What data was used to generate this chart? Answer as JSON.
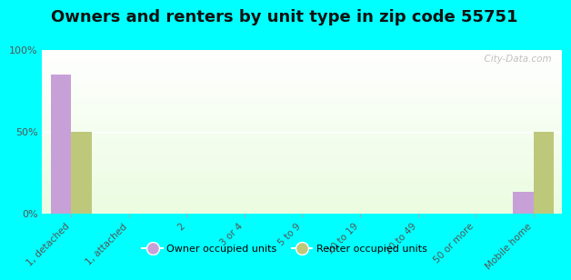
{
  "title": "Owners and renters by unit type in zip code 55751",
  "categories": [
    "1, detached",
    "1, attached",
    "2",
    "3 or 4",
    "5 to 9",
    "10 to 19",
    "20 to 49",
    "50 or more",
    "Mobile home"
  ],
  "owner_values": [
    85,
    0,
    0,
    0,
    0,
    0,
    0,
    0,
    13
  ],
  "renter_values": [
    50,
    0,
    0,
    0,
    0,
    0,
    0,
    0,
    50
  ],
  "owner_color": "#c8a0d8",
  "renter_color": "#bec87a",
  "bg_outer": "#00ffff",
  "yticks": [
    0,
    50,
    100
  ],
  "ylim": [
    0,
    100
  ],
  "bar_width": 0.35,
  "title_fontsize": 13,
  "watermark": "  City-Data.com",
  "legend_labels": [
    "Owner occupied units",
    "Renter occupied units"
  ]
}
